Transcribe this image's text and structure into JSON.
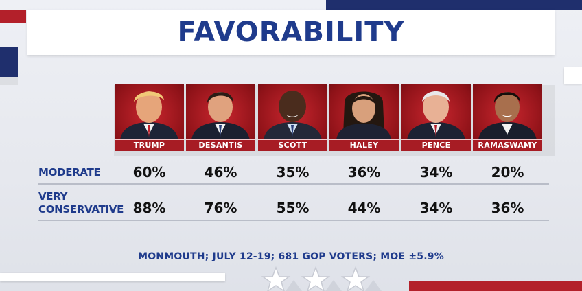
{
  "title": "FAVORABILITY",
  "source": "MONMOUTH; JULY 12-19; 681 GOP VOTERS; MOE ±5.9%",
  "colors": {
    "title_blue": "#1f3b8c",
    "card_red": "#a71c24",
    "accent_navy": "#1f2f6d",
    "accent_red": "#b3202a"
  },
  "chart_data": {
    "type": "table",
    "title": "FAVORABILITY",
    "columns": [
      "TRUMP",
      "DESANTIS",
      "SCOTT",
      "HALEY",
      "PENCE",
      "RAMASWAMY"
    ],
    "rows": [
      {
        "label": "MODERATE",
        "label_lines": [
          "MODERATE"
        ],
        "values": [
          "60%",
          "46%",
          "35%",
          "36%",
          "34%",
          "20%"
        ]
      },
      {
        "label": "VERY CONSERVATIVE",
        "label_lines": [
          "VERY",
          "CONSERVATIVE"
        ],
        "values": [
          "88%",
          "76%",
          "55%",
          "44%",
          "34%",
          "36%"
        ]
      }
    ],
    "numeric_values": {
      "MODERATE": [
        60,
        46,
        35,
        36,
        34,
        20
      ],
      "VERY CONSERVATIVE": [
        88,
        76,
        55,
        44,
        34,
        36
      ]
    },
    "unit": "%"
  }
}
